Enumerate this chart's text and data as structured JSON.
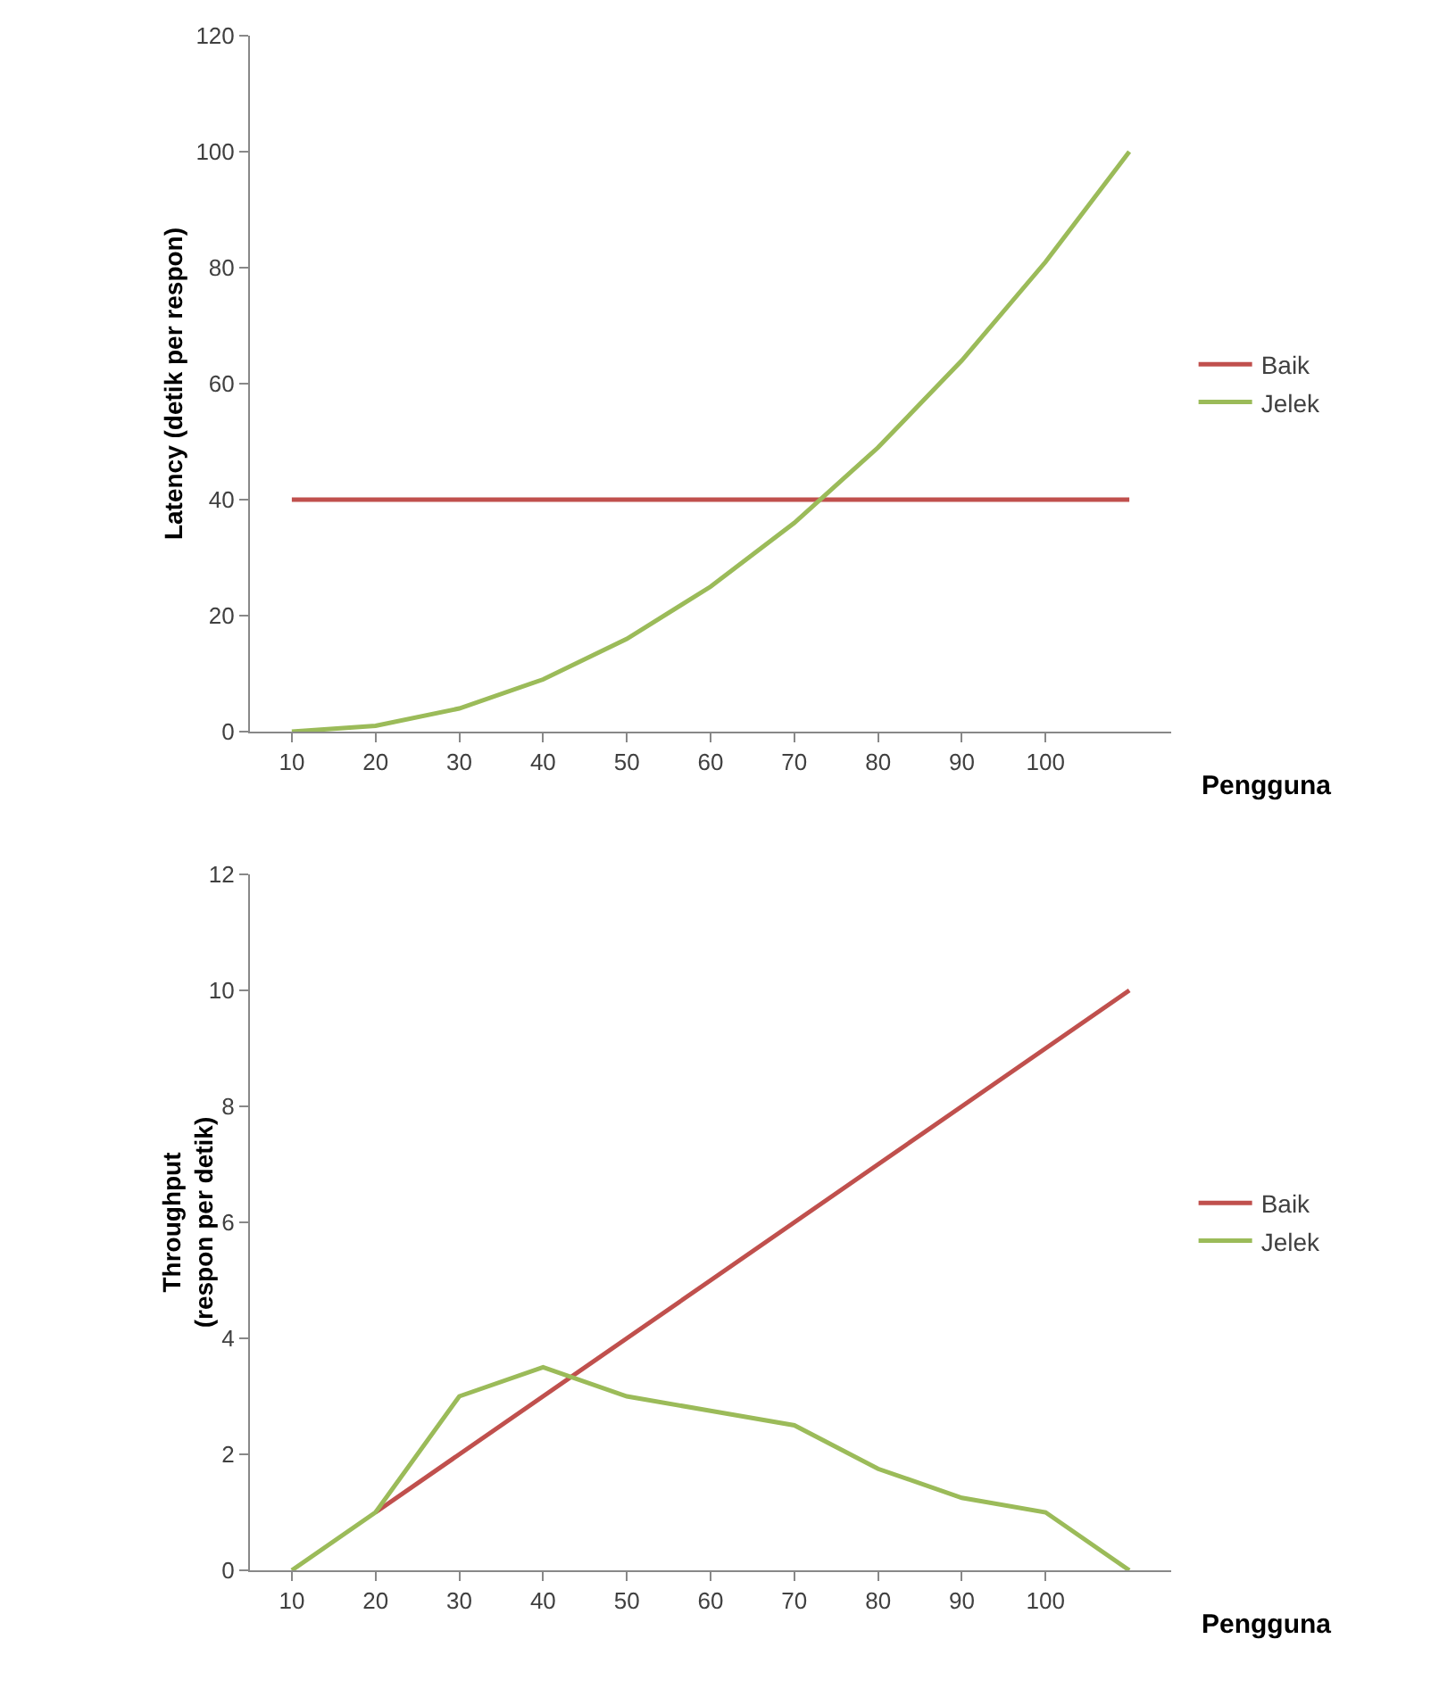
{
  "chart_data": [
    {
      "type": "line",
      "ylabel": "Latency (detik per respon)",
      "xlabel": "Pengguna",
      "categories": [
        "10",
        "20",
        "30",
        "40",
        "50",
        "60",
        "70",
        "80",
        "90",
        "100",
        null
      ],
      "series": [
        {
          "name": "Baik",
          "color": "#c0504d",
          "values": [
            40,
            40,
            40,
            40,
            40,
            40,
            40,
            40,
            40,
            40,
            40
          ]
        },
        {
          "name": "Jelek",
          "color": "#9bbb59",
          "values": [
            0,
            1,
            4,
            9,
            16,
            25,
            36,
            49,
            64,
            81,
            100
          ]
        }
      ],
      "ylim": [
        0,
        120
      ],
      "yticks": [
        0,
        20,
        40,
        60,
        80,
        100,
        120
      ],
      "grid": false,
      "legend": "right"
    },
    {
      "type": "line",
      "ylabel": "Throughput\n(respon per detik)",
      "xlabel": "Pengguna",
      "categories": [
        "10",
        "20",
        "30",
        "40",
        "50",
        "60",
        "70",
        "80",
        "90",
        "100",
        null
      ],
      "series": [
        {
          "name": "Baik",
          "color": "#c0504d",
          "values": [
            null,
            1,
            2,
            3,
            4,
            5,
            6,
            7,
            8,
            9,
            10
          ]
        },
        {
          "name": "Jelek",
          "color": "#9bbb59",
          "values": [
            0,
            1,
            3,
            3.5,
            3,
            2.75,
            2.5,
            1.75,
            1.25,
            1,
            0
          ]
        }
      ],
      "ylim": [
        0,
        12
      ],
      "yticks": [
        0,
        2,
        4,
        6,
        8,
        10,
        12
      ],
      "grid": false,
      "legend": "right"
    }
  ]
}
